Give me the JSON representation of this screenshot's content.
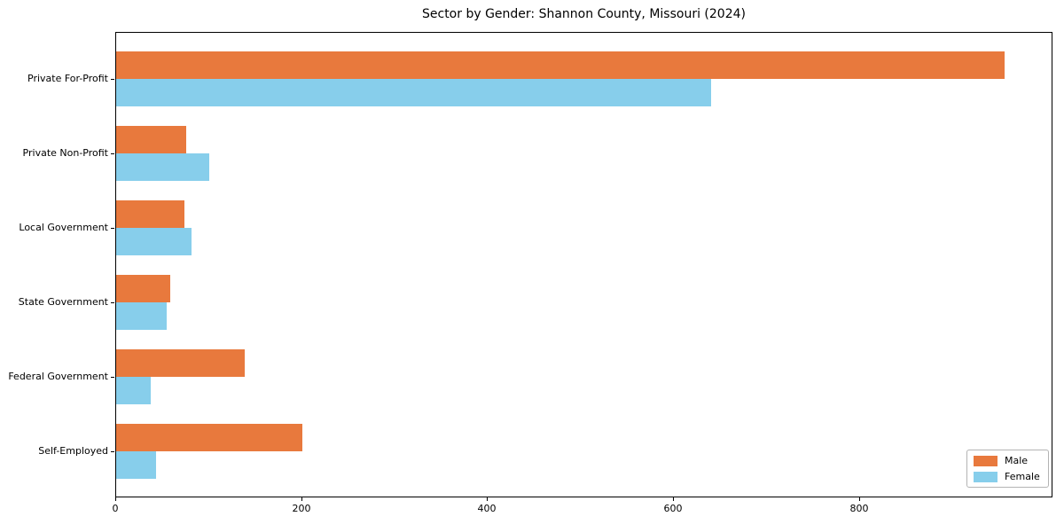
{
  "chart_data": {
    "type": "bar",
    "orientation": "horizontal",
    "title": "Sector by Gender: Shannon County, Missouri (2024)",
    "categories": [
      "Private For-Profit",
      "Private Non-Profit",
      "Local Government",
      "State Government",
      "Federal Government",
      "Self-Employed"
    ],
    "series": [
      {
        "name": "Male",
        "color": "#E8793D",
        "values": [
          955,
          75,
          73,
          58,
          138,
          200
        ]
      },
      {
        "name": "Female",
        "color": "#87CEEB",
        "values": [
          640,
          100,
          81,
          54,
          37,
          43
        ]
      }
    ],
    "xlabel": "",
    "ylabel": "",
    "xlim": [
      0,
      1006
    ],
    "xticks": [
      0,
      200,
      400,
      600,
      800
    ],
    "grid": false,
    "legend_position": "lower right",
    "axis_color": "#000000",
    "background_color": "#ffffff"
  }
}
